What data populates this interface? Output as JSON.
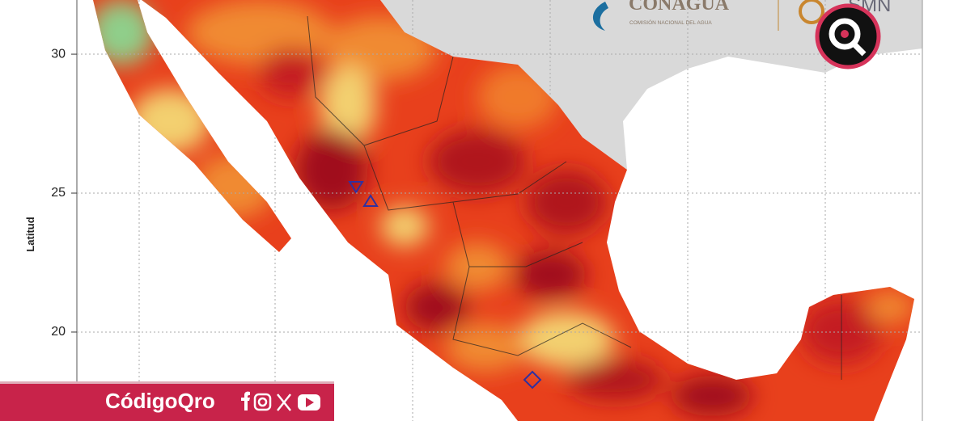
{
  "map": {
    "ylim": [
      16.8,
      31.95
    ],
    "yticks": [
      30,
      25,
      20
    ],
    "y_axis_label": "Latitud",
    "logos": {
      "conagua": "CONAGUA",
      "conagua_subtitle": "COMISIÓN NACIONAL DEL AGUA",
      "smn": "SMN"
    },
    "footer": {
      "brand": "CódigoQro"
    }
  }
}
